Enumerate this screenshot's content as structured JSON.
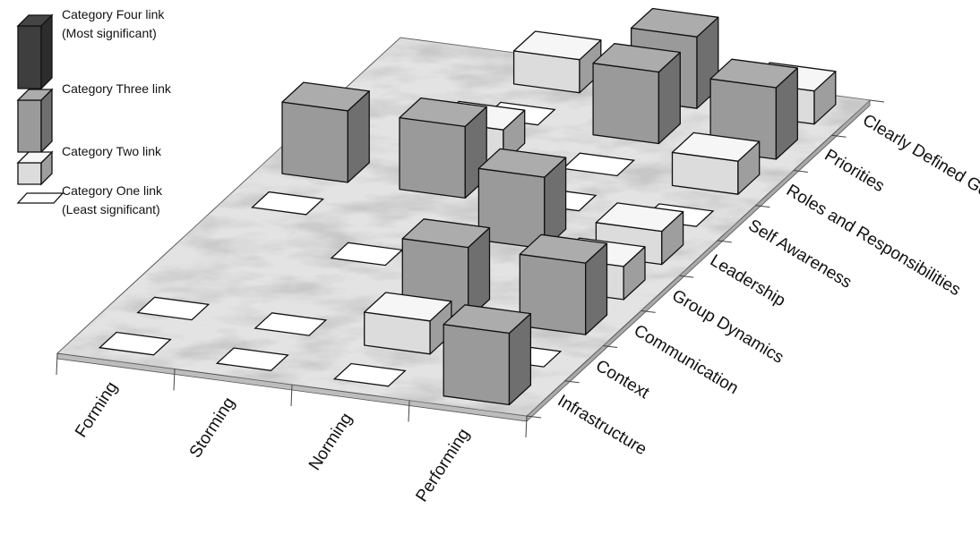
{
  "chart_data": {
    "type": "bar",
    "x_categories": [
      "Forming",
      "Storming",
      "Norming",
      "Performing"
    ],
    "y_categories": [
      "Infrastructure",
      "Context",
      "Communication",
      "Group Dynamics",
      "Leadership",
      "Self Awareness",
      "Roles and Responsibilities",
      "Priorities",
      "Clearly Defined Goals"
    ],
    "level_scale": [
      1,
      2,
      3,
      4
    ],
    "legend": [
      {
        "level": 4,
        "line1": "Category Four link",
        "line2": "(Most significant)"
      },
      {
        "level": 3,
        "line1": "Category Three link",
        "line2": ""
      },
      {
        "level": 2,
        "line1": "Category Two link",
        "line2": ""
      },
      {
        "level": 1,
        "line1": "Category One link",
        "line2": "(Least significant)"
      }
    ],
    "values": [
      {
        "x": "Forming",
        "y": "Infrastructure",
        "level": 1
      },
      {
        "x": "Forming",
        "y": "Context",
        "level": 1
      },
      {
        "x": "Forming",
        "y": "Self Awareness",
        "level": 3
      },
      {
        "x": "Forming",
        "y": "Leadership",
        "level": 1
      },
      {
        "x": "Storming",
        "y": "Infrastructure",
        "level": 1
      },
      {
        "x": "Storming",
        "y": "Context",
        "level": 1
      },
      {
        "x": "Storming",
        "y": "Group Dynamics",
        "level": 1
      },
      {
        "x": "Storming",
        "y": "Self Awareness",
        "level": 3
      },
      {
        "x": "Storming",
        "y": "Roles and Responsibilities",
        "level": 2
      },
      {
        "x": "Storming",
        "y": "Priorities",
        "level": 1
      },
      {
        "x": "Storming",
        "y": "Clearly Defined Goals",
        "level": 2
      },
      {
        "x": "Norming",
        "y": "Infrastructure",
        "level": 1
      },
      {
        "x": "Norming",
        "y": "Context",
        "level": 2
      },
      {
        "x": "Norming",
        "y": "Communication",
        "level": 3
      },
      {
        "x": "Norming",
        "y": "Leadership",
        "level": 3
      },
      {
        "x": "Norming",
        "y": "Self Awareness",
        "level": 1
      },
      {
        "x": "Norming",
        "y": "Roles and Responsibilities",
        "level": 1
      },
      {
        "x": "Norming",
        "y": "Priorities",
        "level": 3
      },
      {
        "x": "Norming",
        "y": "Clearly Defined Goals",
        "level": 3
      },
      {
        "x": "Performing",
        "y": "Infrastructure",
        "level": 3
      },
      {
        "x": "Performing",
        "y": "Context",
        "level": 1
      },
      {
        "x": "Performing",
        "y": "Communication",
        "level": 3
      },
      {
        "x": "Performing",
        "y": "Group Dynamics",
        "level": 2
      },
      {
        "x": "Performing",
        "y": "Leadership",
        "level": 2
      },
      {
        "x": "Performing",
        "y": "Self Awareness",
        "level": 1
      },
      {
        "x": "Performing",
        "y": "Roles and Responsibilities",
        "level": 2
      },
      {
        "x": "Performing",
        "y": "Priorities",
        "level": 3
      },
      {
        "x": "Performing",
        "y": "Clearly Defined Goals",
        "level": 2
      }
    ],
    "colors": {
      "level4": "#3e3e3e",
      "level3": "#9a9a9a",
      "level2": "#dcdcdc",
      "level1": "#ffffff",
      "floor": "#e3e3e3"
    }
  }
}
